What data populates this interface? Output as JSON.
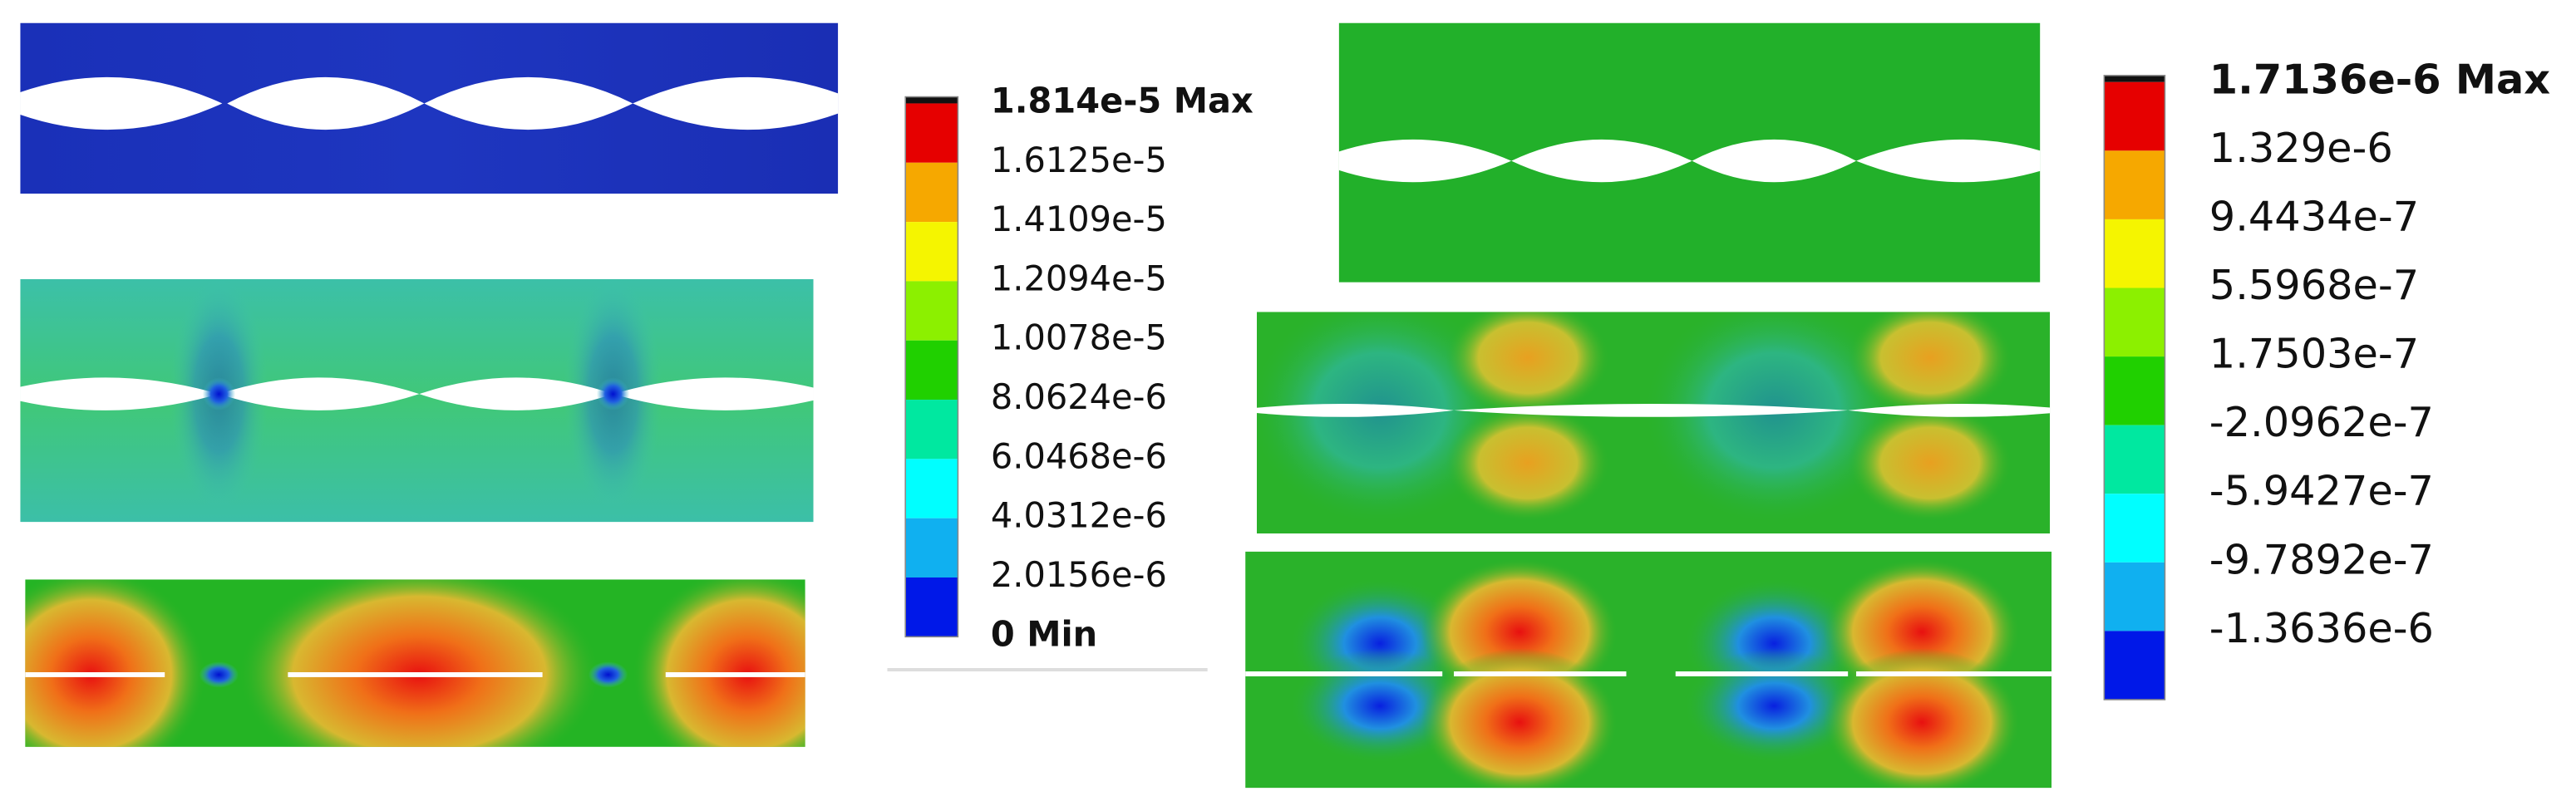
{
  "legends": [
    {
      "labels": [
        "1.814e-5 Max",
        "1.6125e-5",
        "1.4109e-5",
        "1.2094e-5",
        "1.0078e-5",
        "8.0624e-6",
        "6.0468e-6",
        "4.0312e-6",
        "2.0156e-6",
        "0 Min"
      ]
    },
    {
      "labels": [
        "1.7136e-6 Max",
        "1.329e-6",
        "9.4434e-7",
        "5.5968e-7",
        "1.7503e-7",
        "-2.0962e-7",
        "-5.9427e-7",
        "-9.7892e-7",
        "-1.3636e-6"
      ]
    }
  ]
}
